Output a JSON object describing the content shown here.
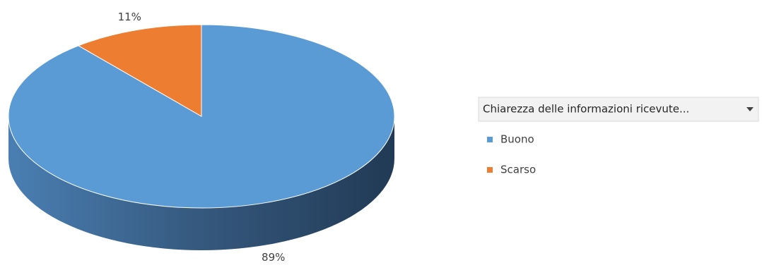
{
  "chart_data": {
    "type": "pie",
    "legend_title": "Chiarezza delle informazioni ricevute...",
    "categories": [
      "Buono",
      "Scarso"
    ],
    "values": [
      89,
      11
    ],
    "value_labels": [
      "89%",
      "11%"
    ],
    "colors": [
      "#5b9bd5",
      "#ed7d31"
    ],
    "legend": "right"
  }
}
